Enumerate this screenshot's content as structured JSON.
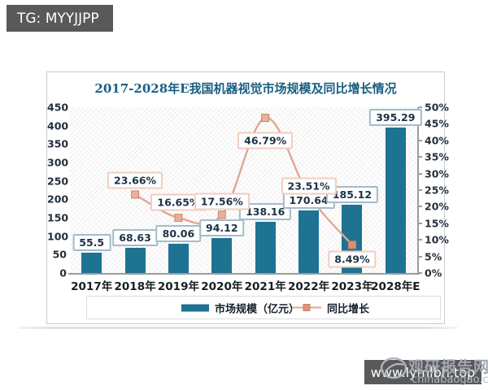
{
  "page": {
    "top_badge": "TG: MYYJJPP",
    "bottom_badge": "www.lymlbh.top"
  },
  "watermark": {
    "name": "观研报告网",
    "site": "chinabaogao.com"
  },
  "chart_data": {
    "type": "bar+line",
    "title": "2017-2028年E我国机器视觉市场规模及同比增长情况",
    "categories": [
      "2017年",
      "2018年",
      "2019年",
      "2020年",
      "2021年",
      "2022年",
      "2023年",
      "2028年E"
    ],
    "series": [
      {
        "name": "市场规模（亿元）",
        "chart_type": "bar",
        "values": [
          55.5,
          68.63,
          80.06,
          94.12,
          138.16,
          170.64,
          185.12,
          395.29
        ],
        "labels": [
          "55.5",
          "68.63",
          "80.06",
          "94.12",
          "138.16",
          "170.64",
          "185.12",
          "395.29"
        ],
        "axis": "left"
      },
      {
        "name": "同比增长",
        "chart_type": "line",
        "values": [
          null,
          23.66,
          16.65,
          17.56,
          46.79,
          23.51,
          8.49,
          null
        ],
        "labels": [
          null,
          "23.66%",
          "16.65%",
          "17.56%",
          "46.79%",
          "23.51%",
          "8.49%",
          null
        ],
        "axis": "right"
      }
    ],
    "left_axis": {
      "min": 0,
      "max": 450,
      "step": 50,
      "ticks": [
        "450",
        "400",
        "350",
        "300",
        "250",
        "200",
        "150",
        "100",
        "50",
        "0"
      ]
    },
    "right_axis": {
      "min": 0,
      "max": 50,
      "step": 5,
      "suffix": "%",
      "ticks": [
        "50%",
        "45%",
        "40%",
        "35%",
        "30%",
        "25%",
        "20%",
        "15%",
        "10%",
        "5%",
        "0%"
      ]
    },
    "legend_position": "bottom",
    "grid": false,
    "plot_background": "diagonal-hatch",
    "growth_label_offsets": [
      -17,
      -19,
      -16,
      28,
      -11,
      18
    ],
    "colors": {
      "bar": "#1d7391",
      "line": "#e2a693",
      "marker_fill": "#e8af9b",
      "marker_edge": "#cd8569",
      "marker_last_fill": "#d98e74",
      "value_box_border": "#a3bcc9",
      "pct_box_border": "#f2cdc1",
      "title": "#195e80"
    }
  }
}
